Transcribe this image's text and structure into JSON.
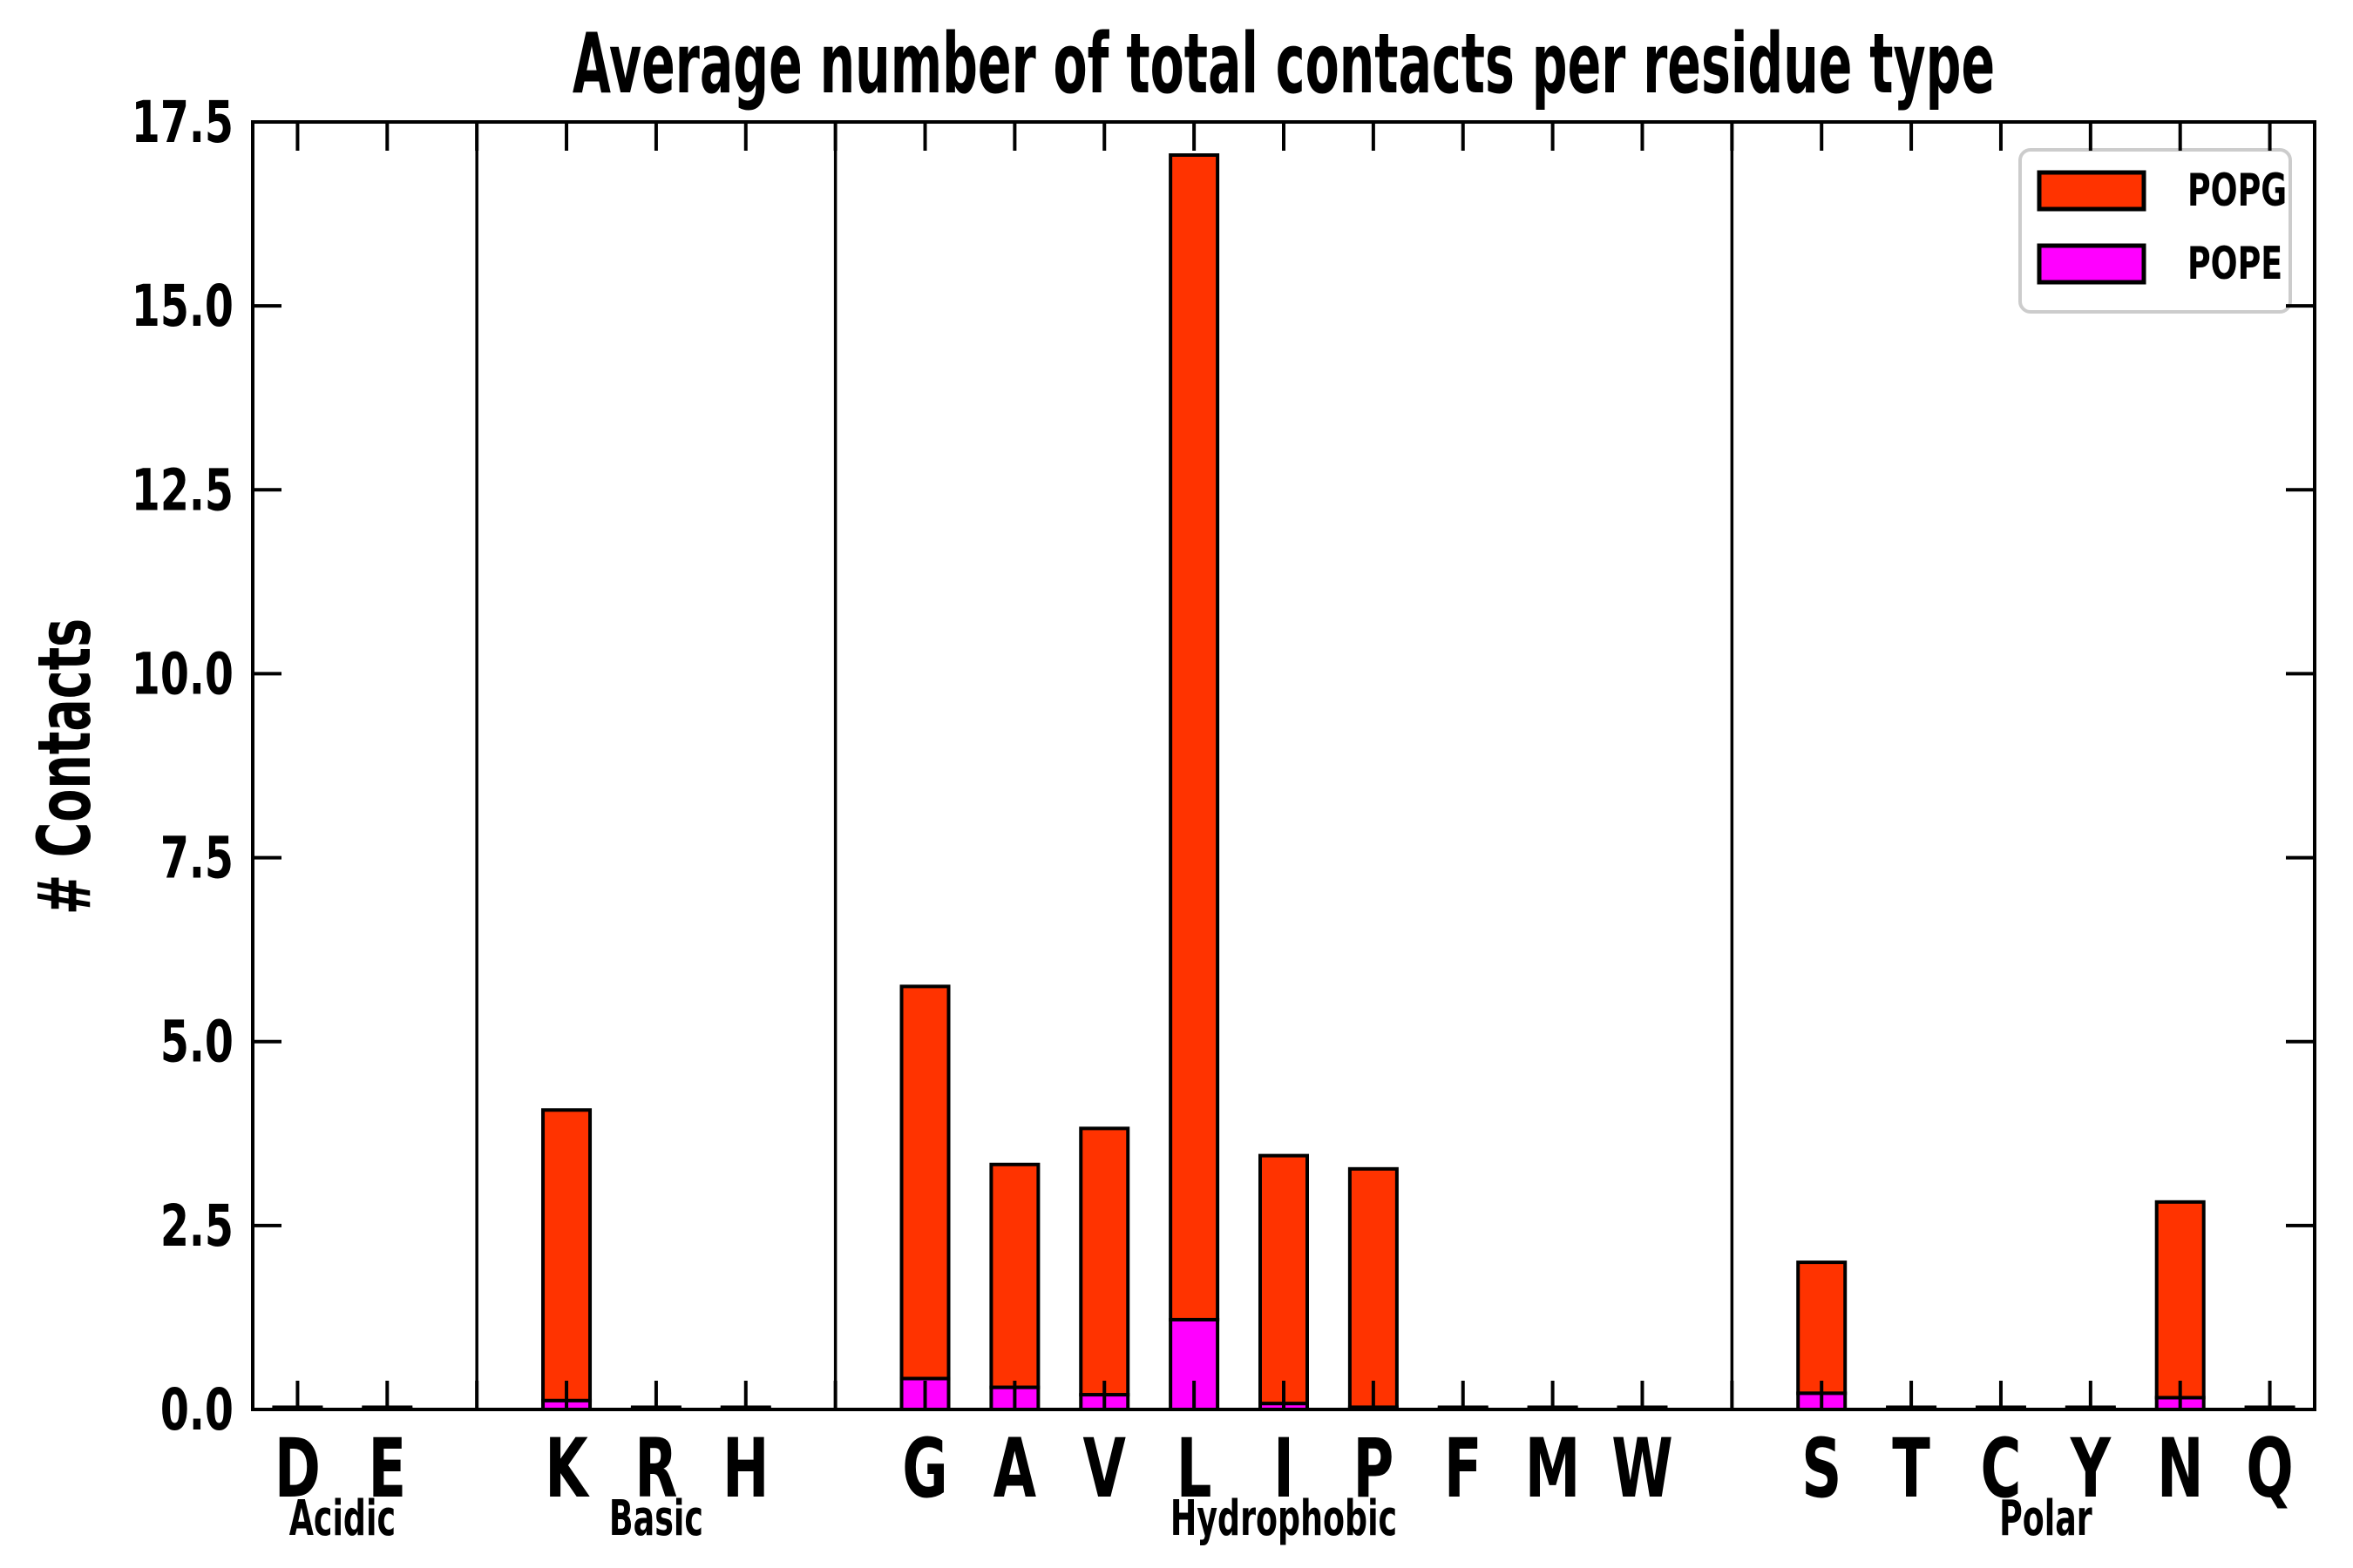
{
  "title": {
    "text": "Average number of total contacts per residue type"
  },
  "axes": {
    "ylabel": "# Contacts",
    "ylim": [
      0,
      17.5
    ],
    "ytick_labels": [
      "0.0",
      "2.5",
      "5.0",
      "7.5",
      "10.0",
      "12.5",
      "15.0",
      "17.5"
    ],
    "ytick_values": [
      0,
      2.5,
      5,
      7.5,
      10,
      12.5,
      15,
      17.5
    ],
    "grid": false,
    "tick_direction": "in"
  },
  "legend": {
    "position": "upper right",
    "entries": [
      {
        "label": "POPG",
        "color": "#FF3300"
      },
      {
        "label": "POPE",
        "color": "#FF00FF"
      }
    ]
  },
  "chart_data": {
    "type": "bar",
    "stacked": true,
    "title": "Average number of total contacts per residue type",
    "xlabel": "",
    "ylabel": "# Contacts",
    "ylim": [
      0,
      17.5
    ],
    "categories": [
      "D",
      "E",
      "K",
      "R",
      "H",
      "G",
      "A",
      "V",
      "L",
      "I",
      "P",
      "F",
      "M",
      "W",
      "S",
      "T",
      "C",
      "Y",
      "N",
      "Q"
    ],
    "slots": [
      0,
      1,
      3,
      4,
      5,
      7,
      8,
      9,
      10,
      11,
      12,
      13,
      14,
      15,
      17,
      18,
      19,
      20,
      21,
      22
    ],
    "total_slots": 23,
    "series": [
      {
        "name": "POPG",
        "color": "#FF3300",
        "stack_level": "top",
        "values": [
          0.02,
          0.02,
          3.95,
          0.02,
          0.02,
          5.33,
          3.03,
          3.62,
          15.83,
          3.37,
          3.24,
          0.02,
          0.02,
          0.02,
          1.78,
          0.02,
          0.02,
          0.02,
          2.66,
          0.02
        ]
      },
      {
        "name": "POPE",
        "color": "#FF00FF",
        "stack_level": "bottom",
        "values": [
          0.01,
          0.01,
          0.12,
          0.01,
          0.01,
          0.42,
          0.3,
          0.2,
          1.22,
          0.08,
          0.03,
          0.01,
          0.01,
          0.01,
          0.22,
          0.01,
          0.01,
          0.01,
          0.16,
          0.01
        ]
      }
    ],
    "totals": [
      0.03,
      0.03,
      4.07,
      0.03,
      0.03,
      5.75,
      3.33,
      3.82,
      17.05,
      3.45,
      3.27,
      0.03,
      0.03,
      0.03,
      2.0,
      0.03,
      0.03,
      0.03,
      2.82,
      0.03
    ],
    "groups": [
      {
        "label": "Acidic",
        "start_slot": 0,
        "end_slot": 1
      },
      {
        "label": "Basic",
        "start_slot": 3,
        "end_slot": 5
      },
      {
        "label": "Hydrophobic",
        "start_slot": 7,
        "end_slot": 15
      },
      {
        "label": "Polar",
        "start_slot": 17,
        "end_slot": 22
      }
    ],
    "divider_slots": [
      2,
      6,
      16
    ],
    "bar_edge_color": "#000000",
    "legend_border_color": "#cccccc"
  }
}
